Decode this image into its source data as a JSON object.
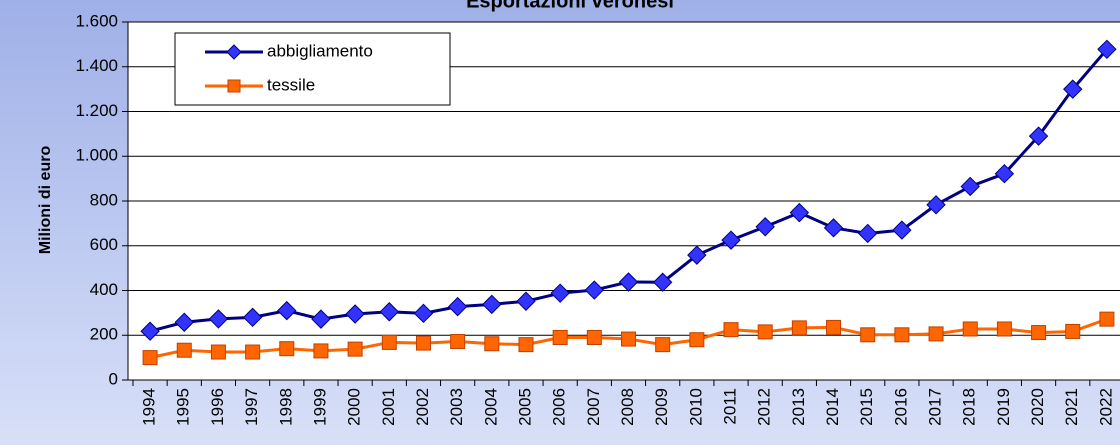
{
  "chart_data": {
    "type": "line",
    "title": "Esportazioni veronesi",
    "y_label": "Milioni di euro",
    "categories": [
      "1994",
      "1995",
      "1996",
      "1997",
      "1998",
      "1999",
      "2000",
      "2001",
      "2002",
      "2003",
      "2004",
      "2005",
      "2006",
      "2007",
      "2008",
      "2009",
      "2010",
      "2011",
      "2012",
      "2013",
      "2014",
      "2015",
      "2016",
      "2017",
      "2018",
      "2019",
      "2020",
      "2021",
      "2022"
    ],
    "series": [
      {
        "name": "abbigliamento",
        "color": "#000080",
        "marker_color": "#3333ff",
        "marker": "diamond",
        "values": [
          218,
          258,
          273,
          280,
          310,
          272,
          295,
          305,
          298,
          328,
          338,
          352,
          388,
          402,
          438,
          437,
          558,
          625,
          685,
          748,
          680,
          655,
          670,
          783,
          865,
          922,
          1090,
          1300,
          1478
        ]
      },
      {
        "name": "tessile",
        "color": "#ff6600",
        "marker_color": "#ff6600",
        "marker": "square",
        "values": [
          100,
          133,
          125,
          125,
          140,
          130,
          138,
          168,
          165,
          172,
          162,
          158,
          190,
          190,
          183,
          158,
          180,
          225,
          215,
          233,
          235,
          202,
          202,
          206,
          228,
          228,
          212,
          217,
          272
        ]
      }
    ],
    "ylim": [
      0,
      1600
    ],
    "yticks": [
      0,
      200,
      400,
      600,
      800,
      {
        "value": 1000,
        "label": "1.000"
      },
      {
        "value": 1200,
        "label": "1.200"
      },
      {
        "value": 1400,
        "label": "1.400"
      },
      {
        "value": 1600,
        "label": "1.600"
      }
    ],
    "grid": true,
    "legend": "upper left"
  }
}
